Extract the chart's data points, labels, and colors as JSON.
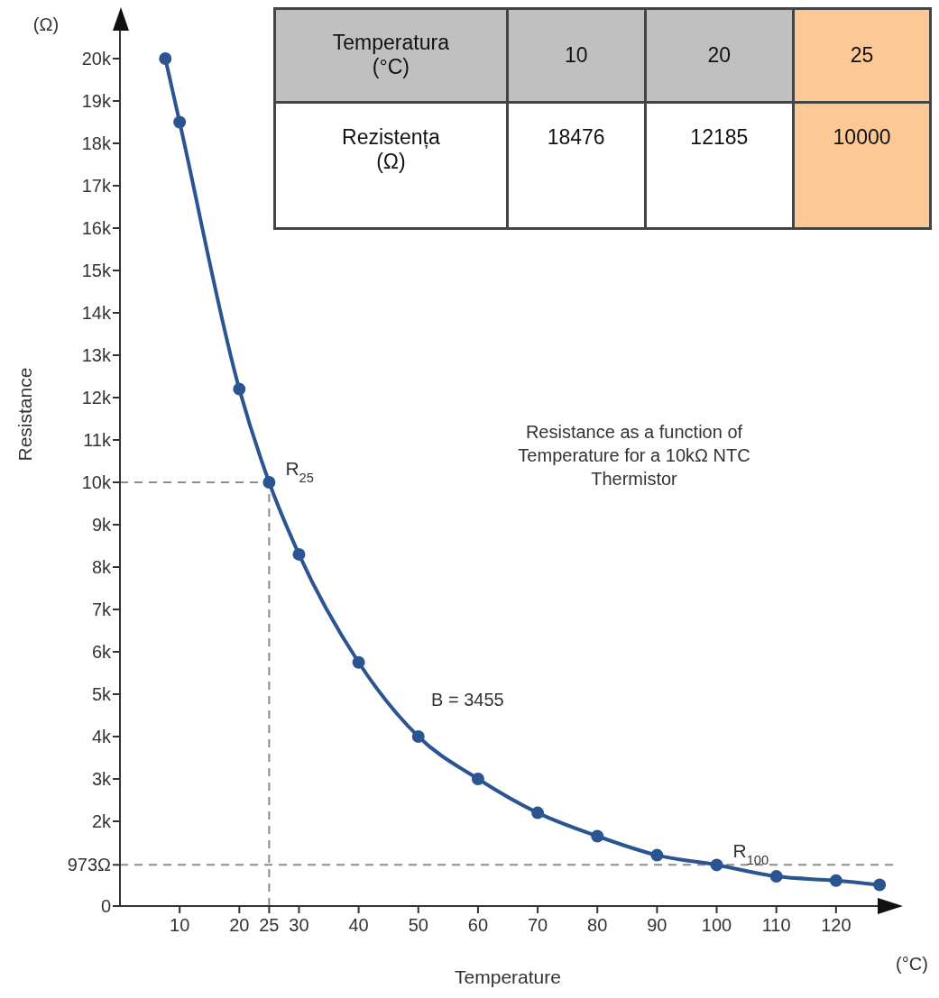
{
  "chart_data": [
    {
      "type": "line",
      "xlabel": "Temperature",
      "ylabel": "Resistance",
      "x": [
        7.6,
        10,
        20,
        25,
        30,
        40,
        50,
        60,
        70,
        80,
        90,
        100,
        110,
        120,
        127.3
      ],
      "series": [
        {
          "color": "#2b5592",
          "values": [
            20000,
            18500,
            12200,
            10000,
            8300,
            5750,
            4000,
            3000,
            2200,
            1650,
            1200,
            970,
            700,
            600,
            500
          ]
        }
      ],
      "xlim": [
        0,
        130
      ],
      "xticks": [
        10,
        20,
        {
          "value": 25,
          "label": "25"
        },
        30,
        40,
        50,
        60,
        70,
        80,
        90,
        100,
        110,
        120
      ],
      "ylim": [
        0,
        21000
      ],
      "yticks": [
        {
          "value": 0,
          "label": "0"
        },
        {
          "value": 973,
          "label": "973Ω"
        },
        {
          "value": 2000,
          "label": "2k"
        },
        {
          "value": 3000,
          "label": "3k"
        },
        {
          "value": 4000,
          "label": "4k"
        },
        {
          "value": 5000,
          "label": "5k"
        },
        {
          "value": 6000,
          "label": "6k"
        },
        {
          "value": 7000,
          "label": "7k"
        },
        {
          "value": 8000,
          "label": "8k"
        },
        {
          "value": 9000,
          "label": "9k"
        },
        {
          "value": 10000,
          "label": "10k"
        },
        {
          "value": 11000,
          "label": "11k"
        },
        {
          "value": 12000,
          "label": "12k"
        },
        {
          "value": 13000,
          "label": "13k"
        },
        {
          "value": 14000,
          "label": "14k"
        },
        {
          "value": 15000,
          "label": "15k"
        },
        {
          "value": 16000,
          "label": "16k"
        },
        {
          "value": 17000,
          "label": "17k"
        },
        {
          "value": 18000,
          "label": "18k"
        },
        {
          "value": 19000,
          "label": "19k"
        },
        {
          "value": 20000,
          "label": "20k"
        }
      ],
      "ref_lines": [
        {
          "axis": "y",
          "value": 10000,
          "line_style": "dashed",
          "color": "#8c8c8c"
        },
        {
          "axis": "x",
          "value": 25,
          "line_style": "dashed",
          "color": "#8c8c8c"
        },
        {
          "axis": "y",
          "value": 973,
          "line_style": "dashed",
          "color": "#8c8c8c"
        }
      ],
      "annotations": [
        "(Ω)",
        "(°C)",
        "Resistance as a function of Temperature for a 10kΩ NTC Thermistor",
        "B = 3455",
        {
          "text": "R$_{25}$",
          "x": 25,
          "y": 10000
        },
        {
          "text": "R$_{100}$",
          "x": 100,
          "y": 973
        }
      ],
      "marker": "circle",
      "line_style": "solid"
    },
    {
      "type": "other",
      "annotations": [
        "Temperatura (°C)",
        "10",
        "20",
        "25",
        "Rezistența (Ω)",
        "18476",
        "12185",
        "10000"
      ],
      "colors": [
        "#c0c0c0",
        "#c0c0c0",
        "#c0c0c0",
        "#fcc896",
        "#ffffff",
        "#ffffff",
        "#ffffff",
        "#fcc896"
      ]
    }
  ]
}
